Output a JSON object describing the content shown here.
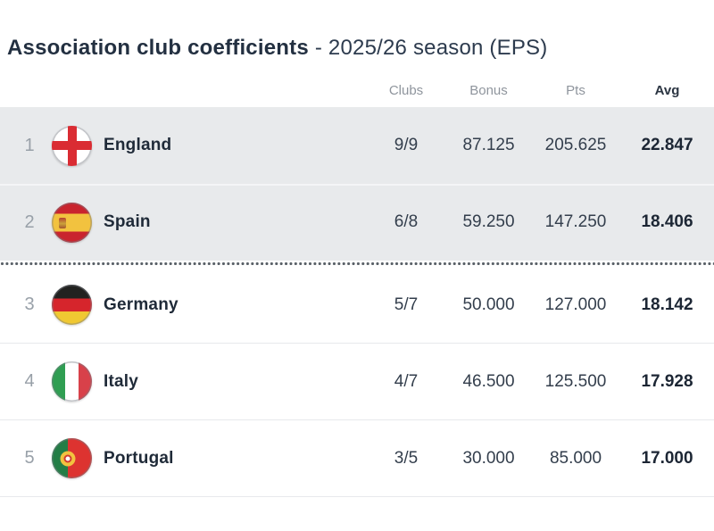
{
  "title": {
    "main": "Association club coefficients",
    "suffix": "- 2025/26 season (EPS)"
  },
  "table": {
    "columns": [
      {
        "label": "Clubs"
      },
      {
        "label": "Bonus"
      },
      {
        "label": "Pts"
      },
      {
        "label": "Avg"
      }
    ],
    "rows": [
      {
        "rank": "1",
        "country": "England",
        "flag": "england-flag",
        "clubs": "9/9",
        "bonus": "87.125",
        "pts": "205.625",
        "avg": "22.847",
        "highlighted": true
      },
      {
        "rank": "2",
        "country": "Spain",
        "flag": "spain-flag",
        "clubs": "6/8",
        "bonus": "59.250",
        "pts": "147.250",
        "avg": "18.406",
        "highlighted": true
      },
      {
        "rank": "3",
        "country": "Germany",
        "flag": "germany-flag",
        "clubs": "5/7",
        "bonus": "50.000",
        "pts": "127.000",
        "avg": "18.142",
        "highlighted": false
      },
      {
        "rank": "4",
        "country": "Italy",
        "flag": "italy-flag",
        "clubs": "4/7",
        "bonus": "46.500",
        "pts": "125.500",
        "avg": "17.928",
        "highlighted": false
      },
      {
        "rank": "5",
        "country": "Portugal",
        "flag": "portugal-flag",
        "clubs": "3/5",
        "bonus": "30.000",
        "pts": "85.000",
        "avg": "17.000",
        "highlighted": false
      }
    ]
  },
  "colors": {
    "highlight_row_bg": "#e8eaec",
    "dotted_separator": "#5a6168",
    "header_text": "#8f959d",
    "primary_text": "#1f2a38",
    "secondary_text": "#98a0a8",
    "avg_text": "#1c2634"
  }
}
